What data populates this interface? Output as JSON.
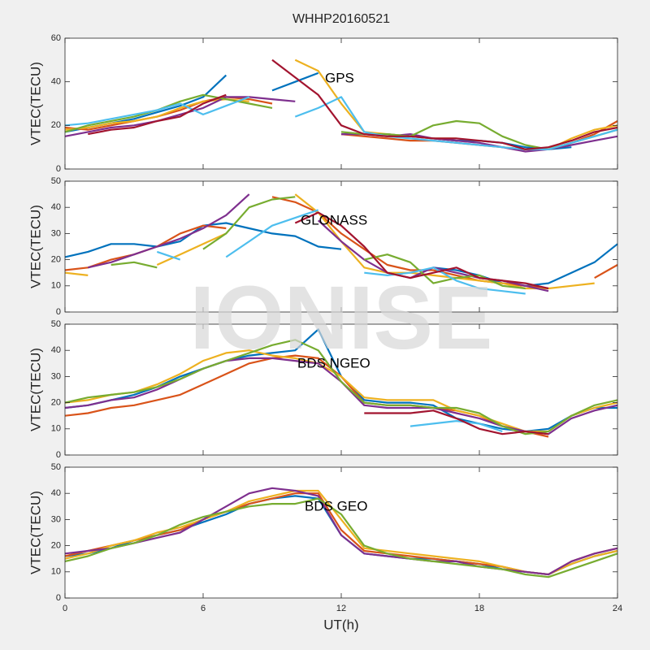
{
  "title": "WHHP20160521",
  "watermark": "IONISE",
  "chart_data": [
    {
      "type": "line",
      "annotation": "GPS",
      "ylabel": "VTEC(TECU)",
      "show_xticklabels": false,
      "x": [
        0,
        1,
        2,
        3,
        4,
        5,
        6,
        7,
        8,
        9,
        10,
        11,
        12,
        13,
        14,
        15,
        16,
        17,
        18,
        19,
        20,
        21,
        22,
        23,
        24
      ],
      "xlim": [
        0,
        24
      ],
      "xticks": [
        0,
        6,
        12,
        18,
        24
      ],
      "ylim": [
        0,
        60
      ],
      "yticks": [
        0,
        20,
        40,
        60
      ],
      "series": [
        {
          "color": "#0072bd",
          "values": [
            17,
            19,
            21,
            23,
            26,
            29,
            33,
            43,
            null,
            36,
            40,
            44,
            null,
            16,
            16,
            15,
            14,
            13,
            13,
            12,
            10,
            9,
            10,
            null,
            null
          ]
        },
        {
          "color": "#d95319",
          "values": [
            19,
            18,
            20,
            22,
            24,
            27,
            31,
            33,
            32,
            30,
            null,
            null,
            16,
            15,
            14,
            13,
            13,
            12,
            11,
            10,
            9,
            9,
            12,
            16,
            22
          ]
        },
        {
          "color": "#edb120",
          "values": [
            18,
            19,
            21,
            22,
            24,
            28,
            31,
            32,
            31,
            null,
            50,
            45,
            30,
            17,
            16,
            15,
            14,
            14,
            null,
            10,
            9,
            9,
            14,
            18,
            20
          ]
        },
        {
          "color": "#7e2f8e",
          "values": [
            15,
            17,
            19,
            20,
            22,
            25,
            28,
            33,
            33,
            32,
            31,
            null,
            16,
            16,
            15,
            16,
            14,
            13,
            12,
            10,
            8,
            9,
            11,
            13,
            15
          ]
        },
        {
          "color": "#77ac30",
          "values": [
            17,
            20,
            22,
            24,
            27,
            31,
            34,
            32,
            30,
            28,
            null,
            null,
            17,
            16,
            16,
            15,
            20,
            22,
            21,
            15,
            11,
            9,
            12,
            15,
            18
          ]
        },
        {
          "color": "#4dbeee",
          "values": [
            20,
            21,
            23,
            25,
            27,
            30,
            25,
            29,
            33,
            null,
            24,
            28,
            33,
            17,
            15,
            14,
            13,
            12,
            11,
            10,
            9,
            9,
            12,
            15,
            18
          ]
        },
        {
          "color": "#a2142f",
          "values": [
            null,
            16,
            18,
            19,
            22,
            24,
            30,
            34,
            null,
            50,
            42,
            34,
            20,
            16,
            15,
            15,
            14,
            14,
            13,
            12,
            9,
            10,
            13,
            17,
            19
          ]
        }
      ]
    },
    {
      "type": "line",
      "annotation": "GLONASS",
      "ylabel": "VTEC(TECU)",
      "show_xticklabels": false,
      "x": [
        0,
        1,
        2,
        3,
        4,
        5,
        6,
        7,
        8,
        9,
        10,
        11,
        12,
        13,
        14,
        15,
        16,
        17,
        18,
        19,
        20,
        21,
        22,
        23,
        24
      ],
      "xlim": [
        0,
        24
      ],
      "xticks": [
        0,
        6,
        12,
        18,
        24
      ],
      "ylim": [
        0,
        50
      ],
      "yticks": [
        0,
        10,
        20,
        30,
        40,
        50
      ],
      "series": [
        {
          "color": "#0072bd",
          "values": [
            21,
            23,
            26,
            26,
            25,
            27,
            33,
            34,
            32,
            30,
            29,
            25,
            24,
            null,
            null,
            null,
            17,
            16,
            14,
            11,
            10,
            11,
            15,
            19,
            26
          ]
        },
        {
          "color": "#d95319",
          "values": [
            16,
            17,
            20,
            22,
            25,
            30,
            33,
            32,
            null,
            44,
            42,
            38,
            30,
            24,
            18,
            16,
            16,
            14,
            12,
            11,
            10,
            9,
            null,
            13,
            18
          ]
        },
        {
          "color": "#edb120",
          "values": [
            15,
            14,
            null,
            null,
            18,
            22,
            26,
            30,
            null,
            null,
            45,
            38,
            27,
            17,
            15,
            15,
            14,
            13,
            12,
            11,
            9,
            9,
            10,
            11,
            null
          ]
        },
        {
          "color": "#7e2f8e",
          "values": [
            null,
            17,
            19,
            22,
            25,
            28,
            32,
            37,
            45,
            null,
            null,
            35,
            27,
            20,
            15,
            13,
            17,
            15,
            13,
            12,
            10,
            8,
            null,
            null,
            null
          ]
        },
        {
          "color": "#77ac30",
          "values": [
            null,
            null,
            18,
            19,
            17,
            null,
            24,
            30,
            40,
            43,
            44,
            null,
            null,
            20,
            22,
            19,
            11,
            13,
            14,
            10,
            9,
            null,
            null,
            null,
            null
          ]
        },
        {
          "color": "#4dbeee",
          "values": [
            null,
            null,
            null,
            null,
            23,
            20,
            null,
            21,
            27,
            33,
            36,
            39,
            null,
            15,
            14,
            15,
            17,
            12,
            9,
            8,
            7,
            null,
            null,
            null,
            null
          ]
        },
        {
          "color": "#a2142f",
          "values": [
            null,
            null,
            null,
            null,
            null,
            null,
            null,
            null,
            46,
            null,
            34,
            38,
            33,
            25,
            15,
            13,
            15,
            17,
            13,
            12,
            11,
            9,
            null,
            null,
            null
          ]
        }
      ]
    },
    {
      "type": "line",
      "annotation": "BDS NGEO",
      "ylabel": "VTEC(TECU)",
      "show_xticklabels": false,
      "x": [
        0,
        1,
        2,
        3,
        4,
        5,
        6,
        7,
        8,
        9,
        10,
        11,
        12,
        13,
        14,
        15,
        16,
        17,
        18,
        19,
        20,
        21,
        22,
        23,
        24
      ],
      "xlim": [
        0,
        24
      ],
      "xticks": [
        0,
        6,
        12,
        18,
        24
      ],
      "ylim": [
        0,
        50
      ],
      "yticks": [
        0,
        10,
        20,
        30,
        40,
        50
      ],
      "series": [
        {
          "color": "#0072bd",
          "values": [
            18,
            19,
            21,
            23,
            26,
            30,
            33,
            36,
            38,
            39,
            40,
            48,
            30,
            21,
            20,
            20,
            19,
            14,
            12,
            10,
            9,
            10,
            15,
            18,
            18
          ]
        },
        {
          "color": "#d95319",
          "values": [
            15,
            16,
            18,
            19,
            21,
            23,
            27,
            31,
            35,
            37,
            38,
            37,
            30,
            20,
            19,
            19,
            18,
            17,
            15,
            11,
            9,
            7,
            null,
            null,
            null
          ]
        },
        {
          "color": "#edb120",
          "values": [
            20,
            21,
            23,
            24,
            27,
            31,
            36,
            39,
            40,
            38,
            37,
            35,
            30,
            22,
            21,
            21,
            21,
            17,
            15,
            12,
            9,
            9,
            15,
            18,
            20
          ]
        },
        {
          "color": "#7e2f8e",
          "values": [
            18,
            19,
            21,
            22,
            25,
            29,
            33,
            36,
            37,
            37,
            36,
            35,
            28,
            19,
            18,
            18,
            18,
            16,
            14,
            11,
            9,
            8,
            14,
            17,
            19
          ]
        },
        {
          "color": "#77ac30",
          "values": [
            20,
            22,
            23,
            24,
            26,
            29,
            33,
            36,
            39,
            42,
            44,
            40,
            28,
            20,
            19,
            19,
            18,
            18,
            16,
            11,
            8,
            9,
            15,
            19,
            21
          ]
        },
        {
          "color": "#4dbeee",
          "values": [
            null,
            null,
            null,
            null,
            null,
            null,
            null,
            null,
            null,
            null,
            null,
            null,
            null,
            null,
            null,
            11,
            12,
            13,
            12,
            9,
            null,
            null,
            null,
            null,
            null
          ]
        },
        {
          "color": "#a2142f",
          "values": [
            null,
            null,
            null,
            null,
            null,
            null,
            null,
            null,
            null,
            null,
            null,
            null,
            null,
            16,
            16,
            16,
            17,
            14,
            10,
            8,
            9,
            8,
            null,
            null,
            null
          ]
        }
      ]
    },
    {
      "type": "line",
      "annotation": "BDS GEO",
      "ylabel": "VTEC(TECU)",
      "xlabel": "UT(h)",
      "show_xticklabels": true,
      "x": [
        0,
        1,
        2,
        3,
        4,
        5,
        6,
        7,
        8,
        9,
        10,
        11,
        12,
        13,
        14,
        15,
        16,
        17,
        18,
        19,
        20,
        21,
        22,
        23,
        24
      ],
      "xlim": [
        0,
        24
      ],
      "xticks": [
        0,
        6,
        12,
        18,
        24
      ],
      "ylim": [
        0,
        50
      ],
      "yticks": [
        0,
        10,
        20,
        30,
        40,
        50
      ],
      "series": [
        {
          "color": "#0072bd",
          "values": [
            16,
            17,
            19,
            22,
            24,
            26,
            29,
            32,
            36,
            38,
            39,
            38,
            24,
            17,
            16,
            15,
            15,
            14,
            13,
            11,
            10,
            9,
            13,
            16,
            18
          ]
        },
        {
          "color": "#d95319",
          "values": [
            16,
            18,
            20,
            22,
            24,
            26,
            30,
            33,
            36,
            38,
            40,
            40,
            26,
            18,
            17,
            16,
            15,
            14,
            13,
            12,
            10,
            9,
            14,
            17,
            19
          ]
        },
        {
          "color": "#edb120",
          "values": [
            15,
            17,
            20,
            22,
            25,
            27,
            30,
            33,
            37,
            39,
            41,
            41,
            30,
            19,
            18,
            17,
            16,
            15,
            14,
            12,
            10,
            9,
            13,
            16,
            18
          ]
        },
        {
          "color": "#7e2f8e",
          "values": [
            17,
            18,
            19,
            21,
            23,
            25,
            30,
            35,
            40,
            42,
            41,
            39,
            24,
            17,
            16,
            15,
            14,
            14,
            12,
            11,
            10,
            9,
            14,
            17,
            19
          ]
        },
        {
          "color": "#77ac30",
          "values": [
            14,
            16,
            19,
            21,
            24,
            28,
            31,
            33,
            35,
            36,
            36,
            38,
            32,
            20,
            17,
            15,
            14,
            13,
            12,
            11,
            9,
            8,
            11,
            14,
            17
          ]
        }
      ]
    }
  ]
}
